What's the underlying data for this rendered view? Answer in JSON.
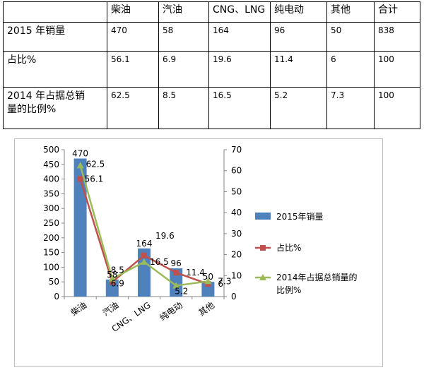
{
  "table": {
    "header": [
      "",
      "柴油",
      "汽油",
      "CNG、LNG",
      "纯电动",
      "其他",
      "合计"
    ],
    "rows": [
      {
        "label": "2015 年销量",
        "cells": [
          "470",
          "58",
          "164",
          "96",
          "50",
          "838"
        ]
      },
      {
        "label": "占比%",
        "cells": [
          "56.1",
          "6.9",
          "19.6",
          "11.4",
          "6",
          "100"
        ]
      },
      {
        "label_lines": [
          "2014 年占据总销",
          "量的比例%"
        ],
        "cells": [
          "62.5",
          "8.5",
          "16.5",
          "5.2",
          "7.3",
          "100"
        ]
      }
    ]
  },
  "chart_data": {
    "type": "bar",
    "categories": [
      "柴油",
      "汽油",
      "CNG、LNG",
      "纯电动",
      "其他"
    ],
    "series": [
      {
        "name": "2015年销量",
        "kind": "bar",
        "axis": "left",
        "color": "#4f81bd",
        "values": [
          470,
          58,
          164,
          96,
          50
        ],
        "labels": [
          "470",
          "58",
          "164",
          "96",
          "50"
        ]
      },
      {
        "name": "占比%",
        "kind": "line",
        "marker": "square",
        "axis": "right",
        "color": "#c0504d",
        "values": [
          56.1,
          6.9,
          19.6,
          11.4,
          6
        ],
        "labels": [
          "56.1",
          "6.9",
          "19.6",
          "11.4",
          "6"
        ]
      },
      {
        "name_lines": [
          "2014年占据总销量的",
          "比例%"
        ],
        "kind": "line",
        "marker": "triangle",
        "axis": "right",
        "color": "#9bbb59",
        "values": [
          62.5,
          8.5,
          16.5,
          5.2,
          7.3
        ],
        "labels": [
          "62.5",
          "8.5",
          "16.5",
          "5.2",
          "7.3"
        ]
      }
    ],
    "y_left": {
      "min": 0,
      "max": 500,
      "ticks": [
        "0",
        "50",
        "100",
        "150",
        "200",
        "250",
        "300",
        "350",
        "400",
        "450",
        "500"
      ]
    },
    "y_right": {
      "min": 0,
      "max": 70,
      "ticks": [
        "0",
        "10",
        "20",
        "30",
        "40",
        "50",
        "60",
        "70"
      ]
    },
    "legend": "right",
    "grid": false
  }
}
